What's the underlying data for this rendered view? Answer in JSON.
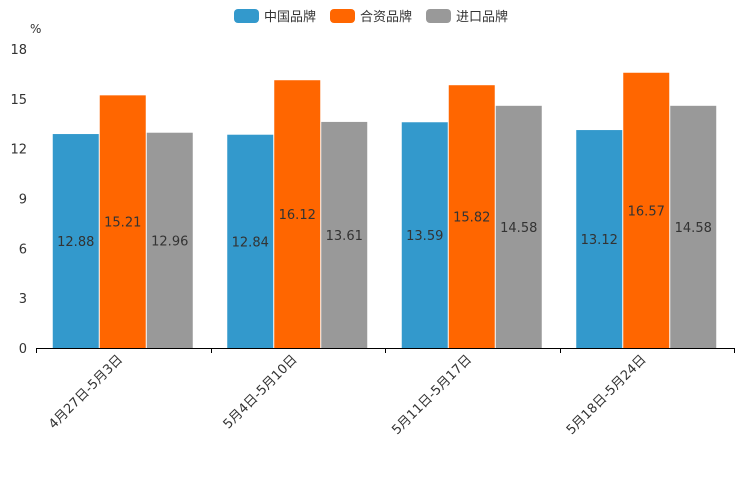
{
  "chart_data": {
    "type": "bar",
    "unit": "%",
    "categories": [
      "4月27日-5月3日",
      "5月4日-5月10日",
      "5月11日-5月17日",
      "5月18日-5月24日"
    ],
    "series": [
      {
        "name": "中国品牌",
        "color": "#3399cc",
        "values": [
          12.88,
          12.84,
          13.59,
          13.12
        ]
      },
      {
        "name": "合资品牌",
        "color": "#ff6600",
        "values": [
          15.21,
          16.12,
          15.82,
          16.57
        ]
      },
      {
        "name": "进口品牌",
        "color": "#999999",
        "values": [
          12.96,
          13.61,
          14.58,
          14.58
        ]
      }
    ],
    "ylim": [
      0,
      18
    ],
    "yticks": [
      0,
      3,
      6,
      9,
      12,
      15,
      18
    ],
    "title": "",
    "xlabel": "",
    "ylabel": "%",
    "legend_position": "top-center",
    "grid": false
  }
}
